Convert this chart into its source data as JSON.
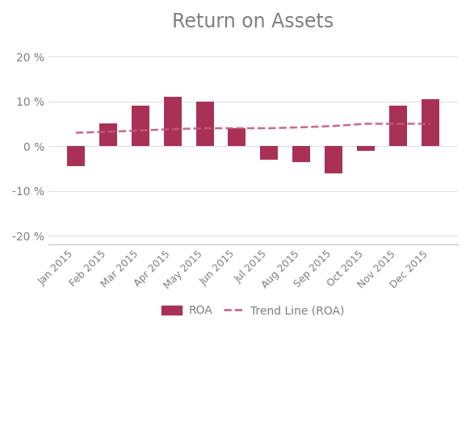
{
  "title": "Return on Assets",
  "categories": [
    "Jan 2015",
    "Feb 2015",
    "Mar 2015",
    "Apr 2015",
    "May 2015",
    "Jun 2015",
    "Jul 2015",
    "Aug 2015",
    "Sep 2015",
    "Oct 2015",
    "Nov 2015",
    "Dec 2015"
  ],
  "roa_values": [
    -4.5,
    5.0,
    9.0,
    11.0,
    10.0,
    4.0,
    -3.0,
    -3.5,
    -6.0,
    -1.0,
    9.0,
    10.5
  ],
  "trend_values": [
    3.0,
    3.2,
    3.5,
    3.8,
    4.0,
    4.0,
    4.0,
    4.2,
    4.5,
    5.0,
    5.0,
    5.0
  ],
  "bar_color": "#a93155",
  "trend_color": "#c45a7a",
  "ylim": [
    -22,
    22
  ],
  "yticks": [
    -20,
    -10,
    0,
    10,
    20
  ],
  "ytick_labels": [
    "-20 %",
    "-10 %",
    "0 %",
    "10 %",
    "20 %"
  ],
  "title_color": "#7f7f7f",
  "title_fontsize": 17,
  "axis_color": "#c0c0c0",
  "tick_color": "#7f7f7f",
  "grid_color": "#e0e0e0",
  "background_color": "#ffffff",
  "legend_roa_label": "ROA",
  "legend_trend_label": "Trend Line (ROA)"
}
